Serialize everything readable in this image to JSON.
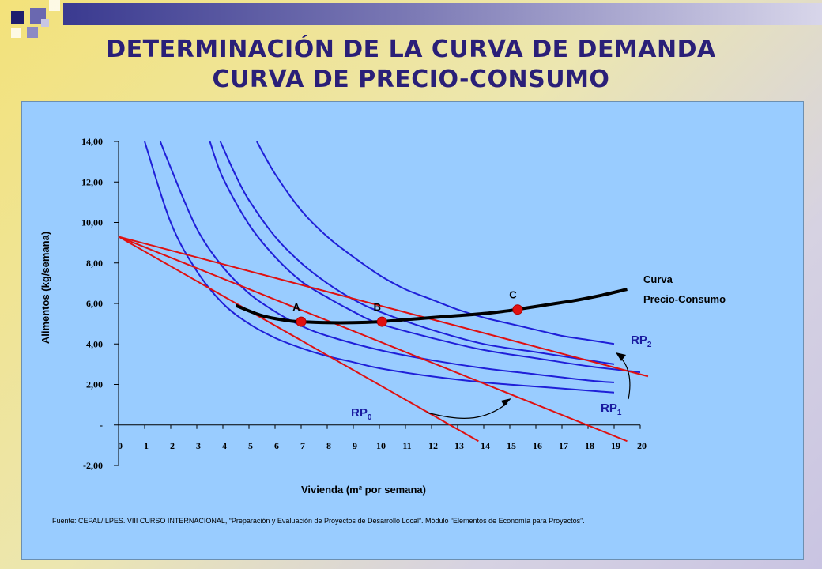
{
  "title_line1": "DETERMINACIÓN DE LA CURVA DE DEMANDA",
  "title_line2": "CURVA DE PRECIO-CONSUMO",
  "source": "Fuente: CEPAL/ILPES. VIII CURSO INTERNACIONAL, “Preparación y Evaluación de Proyectos de Desarrollo Local”. Módulo “Elementos de Economía para Proyectos”.",
  "colors": {
    "title": "#2a1f78",
    "indifference": "#1f1fd8",
    "budget": "#e01010",
    "pcc": "#000000",
    "panel": "#99ccff"
  },
  "chart_data": {
    "type": "line",
    "xlabel": "Vivienda (m² por semana)",
    "ylabel": "Alimentos (kg/semana)",
    "xlim": [
      0,
      20
    ],
    "ylim": [
      -2,
      14
    ],
    "x_ticks": [
      "0",
      "1",
      "2",
      "3",
      "4",
      "5",
      "6",
      "7",
      "8",
      "9",
      "10",
      "11",
      "12",
      "13",
      "14",
      "15",
      "16",
      "17",
      "18",
      "19",
      "20"
    ],
    "y_ticks": [
      {
        "value": 14,
        "label": "14,00"
      },
      {
        "value": 12,
        "label": "12,00"
      },
      {
        "value": 10,
        "label": "10,00"
      },
      {
        "value": 8,
        "label": "8,00"
      },
      {
        "value": 6,
        "label": "6,00"
      },
      {
        "value": 4,
        "label": "4,00"
      },
      {
        "value": 2,
        "label": "2,00"
      },
      {
        "value": 0,
        "label": "-"
      },
      {
        "value": -2,
        "label": "-2,00"
      }
    ],
    "indifference_curves": [
      {
        "x": [
          1.0,
          2.0,
          3.0,
          4.0,
          5.0,
          6.0,
          7.0,
          8.0,
          9.0,
          10.0,
          12.0,
          14.0,
          16.0,
          18.0,
          19.0
        ],
        "y": [
          14.0,
          10.0,
          7.6,
          6.0,
          5.0,
          4.3,
          3.8,
          3.4,
          3.1,
          2.8,
          2.4,
          2.1,
          1.9,
          1.7,
          1.6
        ]
      },
      {
        "x": [
          1.6,
          2.0,
          3.0,
          4.0,
          5.0,
          6.0,
          7.0,
          8.0,
          10.0,
          12.0,
          14.0,
          16.0,
          18.0,
          19.0
        ],
        "y": [
          14.0,
          12.7,
          9.7,
          7.8,
          6.5,
          5.6,
          4.9,
          4.4,
          3.7,
          3.2,
          2.8,
          2.5,
          2.2,
          2.1
        ]
      },
      {
        "x": [
          3.5,
          4.0,
          5.0,
          6.0,
          7.0,
          8.0,
          9.0,
          10.0,
          12.0,
          14.0,
          16.0,
          18.0,
          20.0
        ],
        "y": [
          14.0,
          12.2,
          9.9,
          8.3,
          7.1,
          6.3,
          5.6,
          5.0,
          4.3,
          3.7,
          3.3,
          2.9,
          2.6
        ]
      },
      {
        "x": [
          3.9,
          4.5,
          5.0,
          6.0,
          7.0,
          8.0,
          9.0,
          10.0,
          12.0,
          14.0,
          16.0,
          18.0,
          19.0
        ],
        "y": [
          14.0,
          12.3,
          11.1,
          9.3,
          8.0,
          7.0,
          6.2,
          5.6,
          4.7,
          4.0,
          3.6,
          3.2,
          3.0
        ]
      },
      {
        "x": [
          5.3,
          6.0,
          7.0,
          8.0,
          9.0,
          10.0,
          11.0,
          12.0,
          13.0,
          14.0,
          15.0,
          16.0,
          17.0,
          18.0,
          19.0
        ],
        "y": [
          14.0,
          12.4,
          10.6,
          9.3,
          8.3,
          7.4,
          6.7,
          6.2,
          5.7,
          5.3,
          5.0,
          4.7,
          4.4,
          4.2,
          4.0
        ]
      }
    ],
    "budget_lines": [
      {
        "name": "RP",
        "sub": "0",
        "x": [
          0,
          13.8
        ],
        "y": [
          9.3,
          -0.8
        ]
      },
      {
        "name": "RP",
        "sub": "1",
        "x": [
          0,
          19.5
        ],
        "y": [
          9.3,
          -0.8
        ]
      },
      {
        "name": "RP",
        "sub": "2",
        "x": [
          0,
          20.3
        ],
        "y": [
          9.3,
          2.4
        ]
      }
    ],
    "price_consumption_curve": {
      "name_line1": "Curva",
      "name_line2": "Precio-Consumo",
      "x": [
        4.5,
        5.5,
        6.5,
        7.0,
        8.0,
        9.0,
        10.0,
        11.0,
        12.0,
        13.0,
        14.0,
        15.0,
        15.5,
        16.5,
        17.5,
        18.5,
        19.5
      ],
      "y": [
        5.9,
        5.4,
        5.15,
        5.1,
        5.05,
        5.05,
        5.1,
        5.2,
        5.3,
        5.4,
        5.5,
        5.65,
        5.75,
        5.95,
        6.15,
        6.4,
        6.7
      ]
    },
    "points": [
      {
        "label": "A",
        "x": 7.0,
        "y": 5.1
      },
      {
        "label": "B",
        "x": 10.1,
        "y": 5.1
      },
      {
        "label": "C",
        "x": 15.3,
        "y": 5.7
      }
    ]
  }
}
